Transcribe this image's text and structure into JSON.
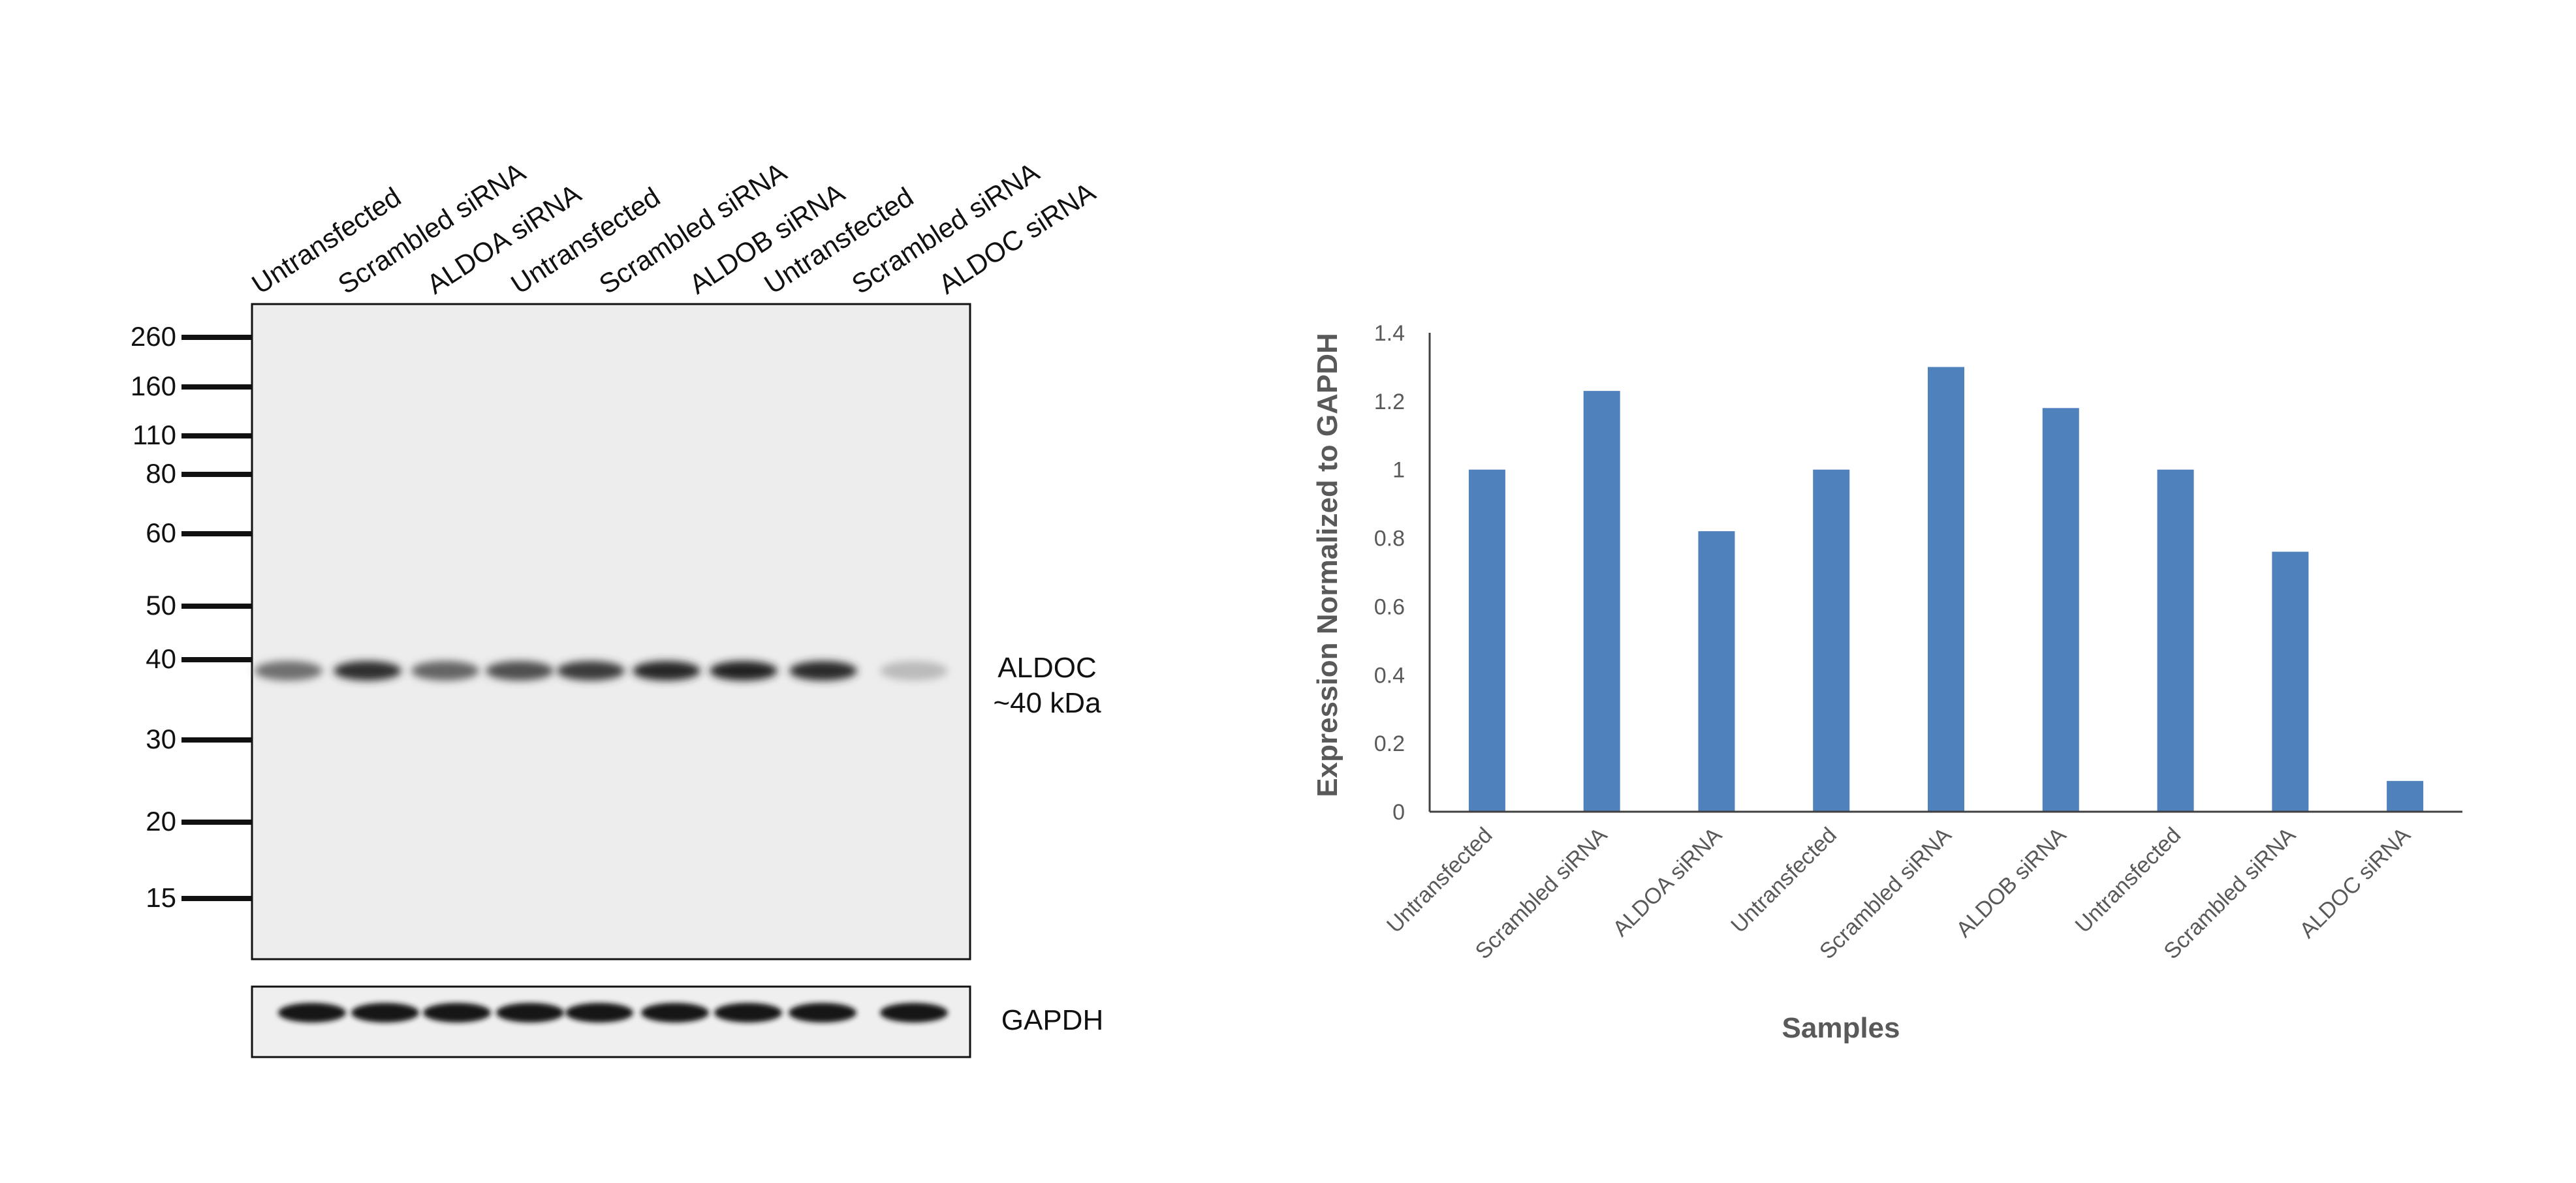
{
  "blot": {
    "lanes": [
      "Untransfected",
      "Scrambled siRNA",
      "ALDOA siRNA",
      "Untransfected",
      "Scrambled siRNA",
      "ALDOB siRNA",
      "Untransfected",
      "Scrambled siRNA",
      "ALDOC siRNA"
    ],
    "markers": [
      "260",
      "160",
      "110",
      "80",
      "60",
      "50",
      "40",
      "30",
      "20",
      "15"
    ],
    "target_label": "ALDOC",
    "target_size": "~40 kDa",
    "loading_label": "GAPDH",
    "band_intensity": [
      0.55,
      0.85,
      0.6,
      0.7,
      0.8,
      0.9,
      0.92,
      0.88,
      0.2
    ]
  },
  "chart_data": {
    "type": "bar",
    "categories": [
      "Untransfected",
      "Scrambled siRNA",
      "ALDOA siRNA",
      "Untransfected",
      "Scrambled siRNA",
      "ALDOB siRNA",
      "Untransfected",
      "Scrambled siRNA",
      "ALDOC siRNA"
    ],
    "values": [
      1.0,
      1.23,
      0.82,
      1.0,
      1.3,
      1.18,
      1.0,
      0.76,
      0.09
    ],
    "xlabel": "Samples",
    "ylabel": "Expression Normalized to GAPDH",
    "ylim": [
      0,
      1.4
    ],
    "yticks": [
      "0",
      "0.2",
      "0.4",
      "0.6",
      "0.8",
      "1",
      "1.2",
      "1.4"
    ],
    "grid": false,
    "bar_color": "#4F81BD"
  }
}
